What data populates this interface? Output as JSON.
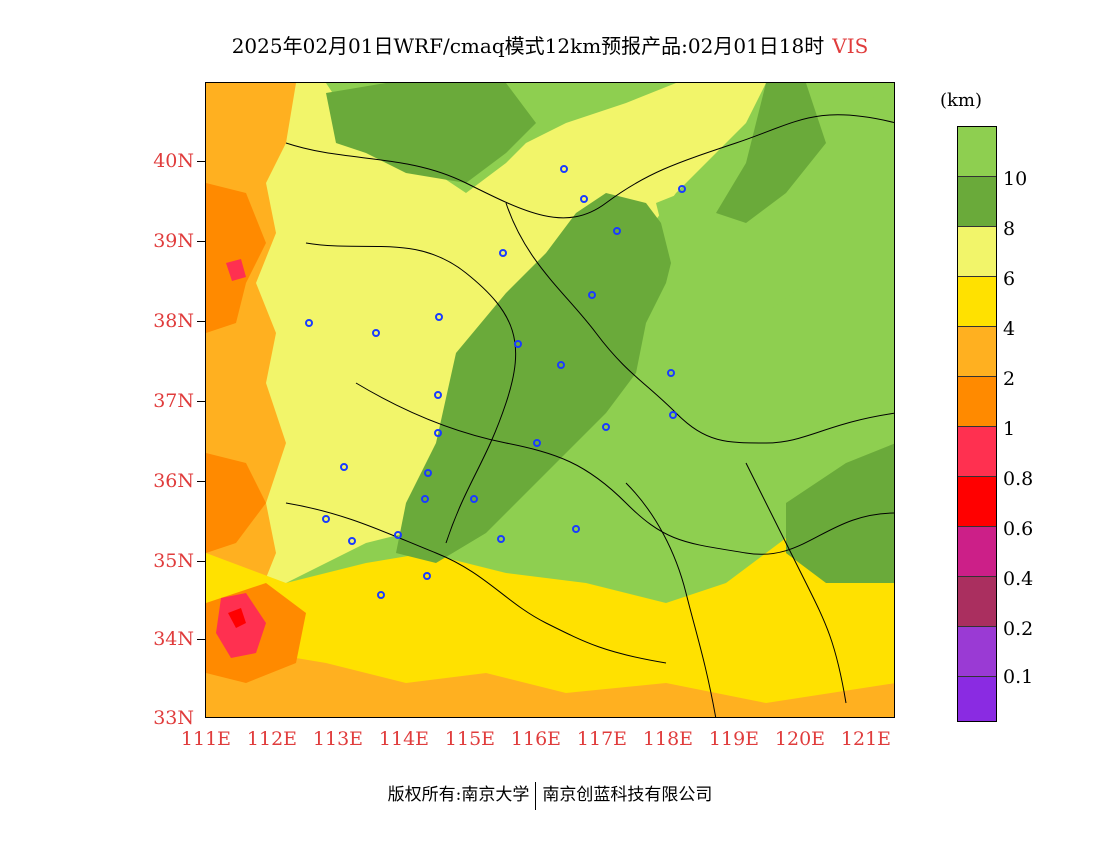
{
  "title": {
    "main": "2025年02月01日WRF/cmaq模式12km预报产品:02月01日18时",
    "variable": "VIS"
  },
  "axes": {
    "lat_labels": [
      "40N",
      "39N",
      "38N",
      "37N",
      "36N",
      "35N",
      "34N",
      "33N"
    ],
    "lon_labels": [
      "111E",
      "112E",
      "113E",
      "114E",
      "115E",
      "116E",
      "117E",
      "118E",
      "119E",
      "120E",
      "121E"
    ]
  },
  "legend": {
    "unit": "(km)",
    "labels": [
      "10",
      "8",
      "6",
      "4",
      "2",
      "1",
      "0.8",
      "0.6",
      "0.4",
      "0.2",
      "0.1"
    ],
    "colors": [
      "#8ecf50",
      "#6aaa3a",
      "#f2f56a",
      "#ffe100",
      "#ffb020",
      "#ff8a00",
      "#ff3050",
      "#ff0000",
      "#cc1f88",
      "#aa2f5f",
      "#9a3ad4",
      "#8a2be2"
    ]
  },
  "footer": {
    "left": "版权所有:南京大学",
    "right": "南京创蓝科技有限公司"
  }
}
